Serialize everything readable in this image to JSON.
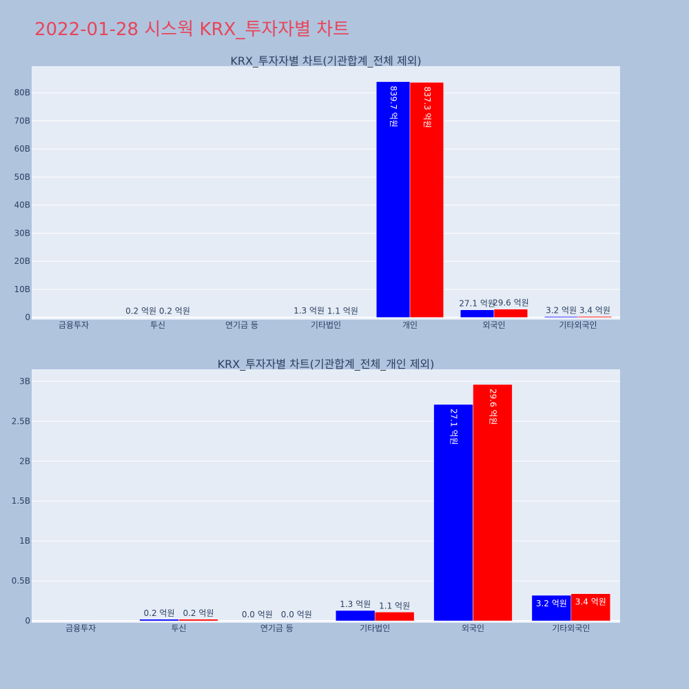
{
  "page": {
    "title": "2022-01-28 시스웍 KRX_투자자별 차트"
  },
  "colors": {
    "background": "#b0c4de",
    "plot_bg": "#e5ecf6",
    "series_1": "#0000ff",
    "series_2": "#ff0000",
    "title": "#e8455a",
    "text": "#2a3f5f"
  },
  "chart_data": [
    {
      "type": "bar",
      "title": "KRX_투자자별 차트(기관합계_전체 제외)",
      "categories": [
        "금융투자",
        "투신",
        "연기금 등",
        "기타법인",
        "개인",
        "외국인",
        "기타외국인"
      ],
      "series": [
        {
          "color": "#0000ff",
          "values": [
            0,
            20000000,
            0,
            130000000,
            83970000000,
            2710000000,
            320000000
          ],
          "labels": [
            "",
            "0.2 억원",
            "",
            "1.3 억원",
            "839.7 억원",
            "27.1 억원",
            "3.2 억원"
          ]
        },
        {
          "color": "#ff0000",
          "values": [
            0,
            20000000,
            0,
            110000000,
            83730000000,
            2960000000,
            340000000
          ],
          "labels": [
            "",
            "0.2 억원",
            "",
            "1.1 억원",
            "837.3 억원",
            "29.6 억원",
            "3.4 억원"
          ]
        }
      ],
      "ylim": [
        -800000000,
        89500000000
      ],
      "yticks": [
        0,
        10000000000,
        20000000000,
        30000000000,
        40000000000,
        50000000000,
        60000000000,
        70000000000,
        80000000000
      ],
      "yticklabels": [
        "0",
        "10B",
        "20B",
        "30B",
        "40B",
        "50B",
        "60B",
        "70B",
        "80B"
      ],
      "grid": true,
      "xlabel": "",
      "ylabel": ""
    },
    {
      "type": "bar",
      "title": "KRX_투자자별 차트(기관합계_전체_개인 제외)",
      "categories": [
        "금융투자",
        "투신",
        "연기금 등",
        "기타법인",
        "외국인",
        "기타외국인"
      ],
      "series": [
        {
          "color": "#0000ff",
          "values": [
            0,
            20000000,
            0,
            130000000,
            2710000000,
            320000000
          ],
          "labels": [
            "",
            "0.2 억원",
            "0.0 억원",
            "1.3 억원",
            "27.1 억원",
            "3.2 억원"
          ]
        },
        {
          "color": "#ff0000",
          "values": [
            0,
            20000000,
            0,
            110000000,
            2960000000,
            340000000
          ],
          "labels": [
            "",
            "0.2 억원",
            "0.0 억원",
            "1.1 억원",
            "29.6 억원",
            "3.4 억원"
          ]
        }
      ],
      "ylim": [
        -25000000,
        3150000000
      ],
      "yticks": [
        0,
        500000000,
        1000000000,
        1500000000,
        2000000000,
        2500000000,
        3000000000
      ],
      "yticklabels": [
        "0",
        "0.5B",
        "1B",
        "1.5B",
        "2B",
        "2.5B",
        "3B"
      ],
      "grid": true,
      "xlabel": "",
      "ylabel": ""
    }
  ]
}
